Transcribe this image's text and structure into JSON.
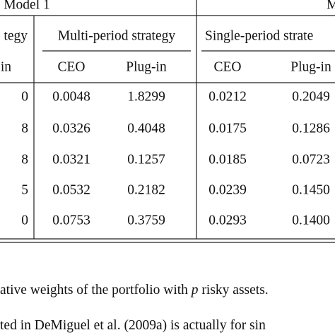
{
  "table": {
    "group_headers": [
      "Model 1",
      "M"
    ],
    "strategy_headers": [
      "tegy",
      "Multi-period strategy",
      "Single-period strate"
    ],
    "column_headers": [
      "in",
      "CEO",
      "Plug-in",
      "CEO",
      "Plug-in"
    ],
    "rows": [
      [
        "0",
        "0.0048",
        "1.8299",
        "0.0212",
        "0.2049"
      ],
      [
        "8",
        "0.0326",
        "0.4048",
        "0.0175",
        "0.1286"
      ],
      [
        "8",
        "0.0321",
        "0.1257",
        "0.0185",
        "0.0723"
      ],
      [
        "5",
        "0.0532",
        "0.2182",
        "0.0239",
        "0.1450"
      ],
      [
        "0",
        "0.0753",
        "0.3759",
        "0.0293",
        "0.1400"
      ]
    ]
  },
  "caption": {
    "lines": [
      [
        "ative weights of the portfolio with ",
        "p",
        " risky assets."
      ],
      [
        "ted in DeMiguel et al. (2009a) is actually for sin"
      ]
    ]
  }
}
